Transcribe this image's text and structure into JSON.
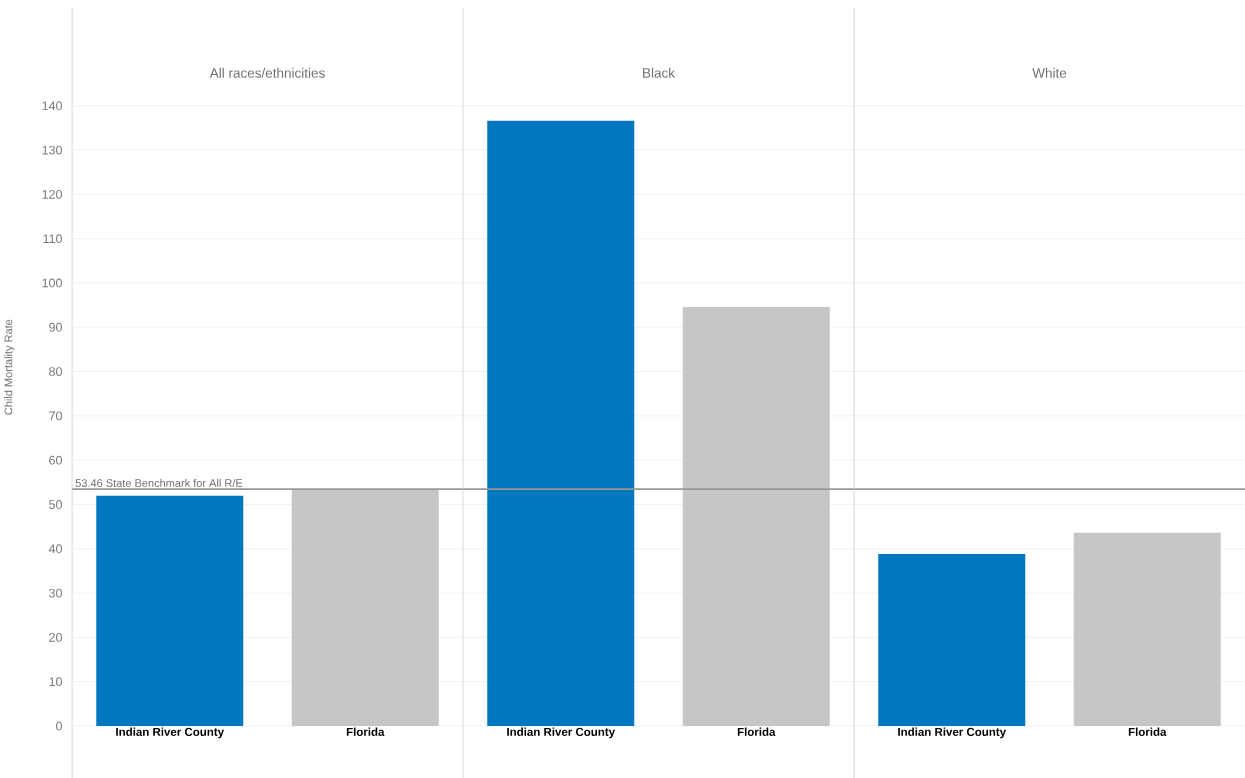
{
  "chart_data": [
    {
      "type": "bar",
      "title": "All races/ethnicities",
      "ylabel": "Child Mortality Rate",
      "categories": [
        "Indian River County",
        "Florida"
      ],
      "values": [
        52.0,
        53.5
      ],
      "colors": [
        "#0077be",
        "#c5c6c5"
      ],
      "ylim": [
        0,
        162
      ],
      "yticks": [
        0,
        10,
        20,
        30,
        40,
        50,
        60,
        70,
        80,
        90,
        100,
        110,
        120,
        130,
        140
      ],
      "grid": "y",
      "ref_lines": [
        {
          "axis": "y",
          "value": 53.46,
          "label": "53.46 State Benchmark for All R/E",
          "color": "#999999"
        }
      ]
    },
    {
      "type": "bar",
      "title": "Black",
      "categories": [
        "Indian River County",
        "Florida"
      ],
      "values": [
        136.6,
        94.6
      ],
      "colors": [
        "#0077be",
        "#c5c6c5"
      ],
      "ylim": [
        0,
        162
      ],
      "yticks": [
        0,
        10,
        20,
        30,
        40,
        50,
        60,
        70,
        80,
        90,
        100,
        110,
        120,
        130,
        140
      ],
      "grid": "y",
      "tick_labels": "x",
      "ref_lines": [
        {
          "axis": "y",
          "value": 53.46,
          "color": "#999999"
        }
      ]
    },
    {
      "type": "bar",
      "title": "White",
      "categories": [
        "Indian River County",
        "Florida"
      ],
      "values": [
        38.8,
        43.6
      ],
      "colors": [
        "#0077be",
        "#c5c6c5"
      ],
      "ylim": [
        0,
        162
      ],
      "yticks": [
        0,
        10,
        20,
        30,
        40,
        50,
        60,
        70,
        80,
        90,
        100,
        110,
        120,
        130,
        140
      ],
      "grid": "y",
      "tick_labels": "x",
      "ref_lines": [
        {
          "axis": "y",
          "value": 53.46,
          "color": "#999999"
        }
      ]
    }
  ]
}
